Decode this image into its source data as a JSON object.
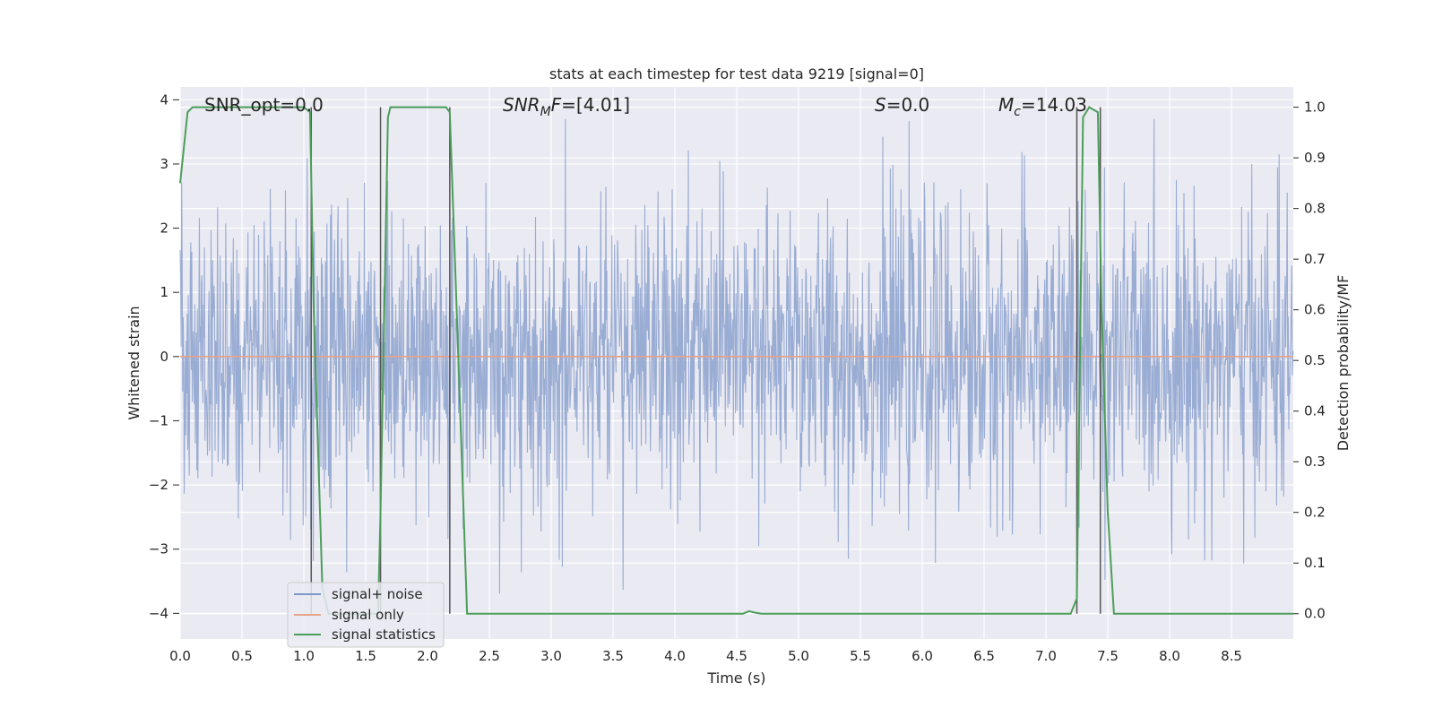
{
  "chart_data": {
    "type": "line",
    "title": "stats at each timestep for test data 9219 [signal=0]",
    "xlabel": "Time (s)",
    "ylabel": "Whitened strain",
    "ylabel_right": "Detection probability/MF",
    "xlim": [
      0.0,
      9.0
    ],
    "ylim": [
      -4.4,
      4.2
    ],
    "ylim_right": [
      -0.05,
      1.04
    ],
    "x_ticks": [
      "0.0",
      "0.5",
      "1.0",
      "1.5",
      "2.0",
      "2.5",
      "3.0",
      "3.5",
      "4.0",
      "4.5",
      "5.0",
      "5.5",
      "6.0",
      "6.5",
      "7.0",
      "7.5",
      "8.0",
      "8.5"
    ],
    "y_ticks": [
      "4",
      "3",
      "2",
      "1",
      "0",
      "−1",
      "−2",
      "−3",
      "−4"
    ],
    "y_right_ticks": [
      "1.0",
      "0.9",
      "0.8",
      "0.7",
      "0.6",
      "0.5",
      "0.4",
      "0.3",
      "0.2",
      "0.1",
      "0.0"
    ],
    "grid": true,
    "legend_position": "lower-left",
    "annotations": {
      "snr_opt": "SNR_opt=0.0",
      "snr_mf_main": "SNR",
      "snr_mf_sub": "M",
      "snr_mf_rest": "F=[4.01]",
      "s_main": "S",
      "s_rest": "=0.0",
      "mc_main": "M",
      "mc_sub": "c",
      "mc_rest": "=14.03"
    },
    "series": [
      {
        "name": "signal+ noise",
        "color": "#7e97c8",
        "description_values": "gaussian whitened noise, amplitude roughly within ±3.5"
      },
      {
        "name": "signal only",
        "color": "#e6a38a",
        "values_constant": 0.0
      },
      {
        "name": "signal statistics",
        "color": "#4c9e5a",
        "x": [
          0.0,
          0.06,
          0.1,
          0.2,
          0.5,
          1.0,
          1.05,
          1.08,
          1.15,
          1.2,
          1.6,
          1.62,
          1.68,
          1.7,
          2.0,
          2.15,
          2.18,
          2.25,
          2.32,
          3.0,
          4.0,
          4.55,
          4.6,
          4.65,
          4.7,
          5.0,
          6.0,
          7.0,
          7.2,
          7.25,
          7.3,
          7.35,
          7.42,
          7.45,
          7.5,
          7.55,
          8.0,
          9.0
        ],
        "y": [
          0.85,
          0.99,
          1.0,
          1.0,
          1.0,
          1.0,
          0.99,
          0.6,
          0.05,
          0.0,
          0.0,
          0.2,
          0.98,
          1.0,
          1.0,
          1.0,
          0.99,
          0.5,
          0.0,
          0.0,
          0.0,
          0.0,
          0.005,
          0.002,
          0.0,
          0.0,
          0.0,
          0.0,
          0.0,
          0.03,
          0.98,
          1.0,
          0.99,
          0.6,
          0.2,
          0.0,
          0.0,
          0.0
        ]
      }
    ],
    "vertical_markers_x": [
      1.06,
      1.62,
      2.18,
      7.25,
      7.44
    ]
  },
  "legend": {
    "items": [
      {
        "label": "signal+ noise",
        "color": "#7e97c8"
      },
      {
        "label": "signal only",
        "color": "#e6a38a"
      },
      {
        "label": "signal statistics",
        "color": "#4c9e5a"
      }
    ]
  },
  "theme": {
    "plot_background": "#eaeaf2",
    "grid_color": "#ffffff",
    "marker_line_color": "#555555"
  }
}
